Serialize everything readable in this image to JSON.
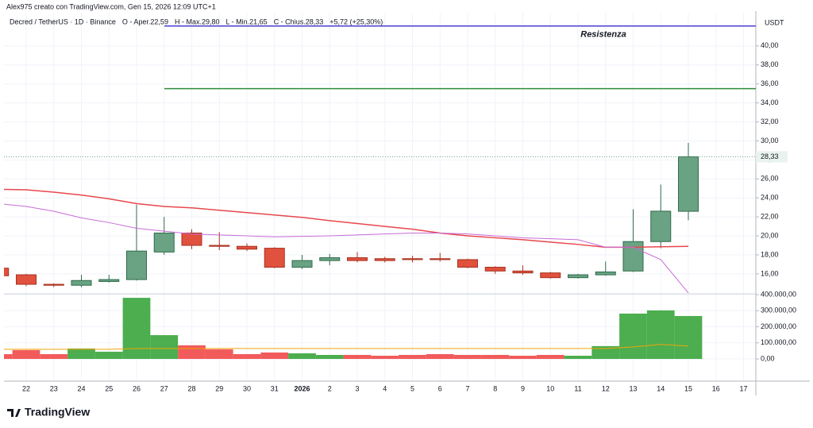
{
  "header": {
    "credit": "Alex975 creato con TradingView.com, Gen 15, 2026 12:09 UTC+1",
    "logo": "TradingView"
  },
  "chart_data": {
    "type": "candlestick",
    "symbol": "Decred / TetherUS · 1D · Binance",
    "legend_values": [
      "O ‑ Aper.22,59",
      "H ‑ Max.29,80",
      "L ‑ Min.21,65",
      "C ‑ Chius.28,33",
      "+5,72 (+25,30%)"
    ],
    "currency": "USDT",
    "categories": [
      null,
      "22",
      "23",
      "24",
      "25",
      "26",
      "27",
      "28",
      "29",
      "30",
      "31",
      "2026",
      "2",
      "3",
      "4",
      "5",
      "6",
      "7",
      "8",
      "9",
      "10",
      "11",
      "12",
      "13",
      "14",
      "15",
      "16",
      "17"
    ],
    "open": [
      16.6,
      15.9,
      14.9,
      14.8,
      15.2,
      15.4,
      18.3,
      20.3,
      19.0,
      18.9,
      18.7,
      16.7,
      17.4,
      17.7,
      17.6,
      17.6,
      17.6,
      17.5,
      16.7,
      16.3,
      16.1,
      15.6,
      15.9,
      16.3,
      19.4,
      22.59,
      null,
      null
    ],
    "high": [
      16.7,
      16.0,
      15.0,
      15.9,
      15.9,
      23.3,
      22.0,
      20.7,
      20.4,
      19.2,
      18.8,
      18.0,
      18.1,
      18.3,
      17.8,
      17.9,
      18.2,
      17.6,
      16.8,
      16.9,
      16.2,
      16.0,
      17.3,
      22.8,
      25.4,
      29.8,
      null,
      null
    ],
    "low": [
      15.7,
      14.7,
      14.6,
      14.6,
      15.1,
      15.3,
      18.0,
      18.6,
      18.5,
      18.4,
      16.6,
      16.5,
      16.9,
      17.2,
      17.2,
      17.2,
      17.3,
      16.6,
      16.0,
      15.9,
      15.5,
      15.5,
      15.8,
      16.2,
      18.7,
      21.65,
      null,
      null
    ],
    "close": [
      15.8,
      14.9,
      14.8,
      15.3,
      15.4,
      18.4,
      20.3,
      19.0,
      18.9,
      18.6,
      16.7,
      17.4,
      17.7,
      17.4,
      17.4,
      17.5,
      17.5,
      16.7,
      16.3,
      16.1,
      15.6,
      15.9,
      16.2,
      19.4,
      22.6,
      28.33,
      null,
      null
    ],
    "volume": [
      30000,
      55000,
      30000,
      65000,
      45000,
      380000,
      148000,
      85000,
      60000,
      30000,
      40000,
      35000,
      25000,
      25000,
      20000,
      25000,
      30000,
      25000,
      25000,
      20000,
      25000,
      20000,
      80000,
      282000,
      302000,
      267000,
      null,
      null
    ],
    "up_color": "#6aa384",
    "down_color": "#e0513e",
    "volume_up_color": "#4cae4f",
    "volume_down_color": "#f25b5b",
    "moving_averages": [
      {
        "color": "#e8474c",
        "pane": "price",
        "values": [
          24.9,
          24.85,
          24.6,
          24.3,
          23.9,
          23.4,
          23.1,
          22.95,
          22.7,
          22.45,
          22.2,
          21.95,
          21.6,
          21.3,
          21.0,
          20.7,
          20.3,
          20.0,
          19.8,
          19.6,
          19.35,
          19.1,
          18.8,
          18.8,
          18.85,
          18.9,
          null,
          null
        ]
      },
      {
        "color": "#c86bd6",
        "pane": "price",
        "values": [
          23.4,
          23.1,
          22.6,
          21.9,
          21.4,
          20.8,
          20.5,
          20.2,
          20.1,
          20.0,
          19.9,
          19.95,
          20.0,
          20.1,
          20.2,
          20.3,
          20.3,
          20.2,
          20.0,
          19.8,
          19.7,
          19.6,
          18.8,
          18.8,
          17.5,
          14.0,
          null,
          null
        ]
      },
      {
        "color": "#f0a30a",
        "pane": "volume",
        "values": [
          60000,
          60000,
          60000,
          60000,
          60000,
          65000,
          65000,
          65000,
          65000,
          65000,
          65000,
          65000,
          65000,
          65000,
          65000,
          65000,
          65000,
          65000,
          65000,
          65000,
          65000,
          65000,
          65000,
          75000,
          90000,
          80000,
          null,
          null
        ]
      }
    ],
    "levels": [
      {
        "value": 42.1,
        "color": "#4a3fd0",
        "label": "Resistenza"
      },
      {
        "value": 35.5,
        "color": "#2e8b3e"
      }
    ],
    "last_price": 28.33,
    "last_price_label": "28,33",
    "ylim": [
      13.9,
      43.5
    ],
    "yticks": [
      {
        "value": 16,
        "label": "16,00"
      },
      {
        "value": 18,
        "label": "18,00"
      },
      {
        "value": 20,
        "label": "20,00"
      },
      {
        "value": 22,
        "label": "22,00"
      },
      {
        "value": 24,
        "label": "24,00"
      },
      {
        "value": 26,
        "label": "26,00"
      },
      {
        "value": 28,
        "label": "28,00"
      },
      {
        "value": 30,
        "label": "30,00"
      },
      {
        "value": 32,
        "label": "32,00"
      },
      {
        "value": 34,
        "label": "34,00"
      },
      {
        "value": 36,
        "label": "36,00"
      },
      {
        "value": 38,
        "label": "38,00"
      },
      {
        "value": 40,
        "label": "40,00"
      }
    ],
    "y2lim": [
      -138000,
      400000
    ],
    "y2ticks": [
      {
        "value": 0,
        "label": "0,00"
      },
      {
        "value": 100000,
        "label": "100.000,00"
      },
      {
        "value": 200000,
        "label": "200.000,00"
      },
      {
        "value": 300000,
        "label": "300.000,00"
      },
      {
        "value": 400000,
        "label": "400.000,00"
      }
    ],
    "grid": true
  }
}
